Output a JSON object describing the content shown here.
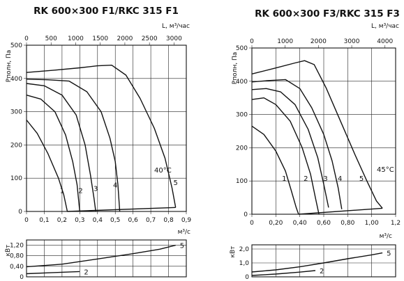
{
  "charts": [
    {
      "title": "RK 600×300 F1/RKC 315 F1",
      "type": "line",
      "top_axis": {
        "label": "L, м³/час",
        "ticks": [
          0,
          500,
          1000,
          1500,
          2000,
          2500,
          3000
        ],
        "tick_labels": [
          "0",
          "500",
          "1000",
          "1500",
          "2000",
          "2500",
          "3000"
        ],
        "range": [
          0,
          3250
        ]
      },
      "x_axis": {
        "label": "м³/с",
        "ticks": [
          0,
          0.1,
          0.2,
          0.3,
          0.4,
          0.5,
          0.6,
          0.7,
          0.8,
          0.9
        ],
        "tick_labels": [
          "0",
          "0,1",
          "0,2",
          "0,3",
          "0,4",
          "0,5",
          "0,6",
          "0,7",
          "0,8",
          "0,9"
        ],
        "range": [
          0,
          0.9
        ]
      },
      "y_axis": {
        "label": "Pполн, Па",
        "ticks": [
          0,
          100,
          200,
          300,
          400,
          500
        ],
        "tick_labels": [
          "0",
          "100",
          "200",
          "300",
          "400",
          "500"
        ],
        "range": [
          0,
          500
        ]
      },
      "temperature_label": "40°C",
      "series": [
        {
          "name": "1",
          "label_at": [
            0.2,
            55
          ],
          "points": [
            [
              0,
              275
            ],
            [
              0.06,
              235
            ],
            [
              0.12,
              175
            ],
            [
              0.18,
              100
            ],
            [
              0.21,
              50
            ],
            [
              0.23,
              0
            ]
          ]
        },
        {
          "name": "2",
          "label_at": [
            0.305,
            55
          ],
          "points": [
            [
              0,
              350
            ],
            [
              0.08,
              338
            ],
            [
              0.16,
              300
            ],
            [
              0.22,
              230
            ],
            [
              0.26,
              150
            ],
            [
              0.285,
              80
            ],
            [
              0.3,
              0
            ]
          ]
        },
        {
          "name": "3",
          "label_at": [
            0.39,
            62
          ],
          "points": [
            [
              0,
              385
            ],
            [
              0.1,
              378
            ],
            [
              0.2,
              350
            ],
            [
              0.28,
              290
            ],
            [
              0.33,
              200
            ],
            [
              0.36,
              110
            ],
            [
              0.38,
              40
            ],
            [
              0.39,
              0
            ]
          ]
        },
        {
          "name": "4",
          "label_at": [
            0.5,
            72
          ],
          "points": [
            [
              0,
              398
            ],
            [
              0.12,
              396
            ],
            [
              0.24,
              392
            ],
            [
              0.34,
              360
            ],
            [
              0.42,
              300
            ],
            [
              0.47,
              220
            ],
            [
              0.5,
              150
            ],
            [
              0.515,
              80
            ],
            [
              0.525,
              0
            ]
          ]
        },
        {
          "name": "5",
          "label_at": [
            0.84,
            80
          ],
          "points": [
            [
              0,
              418
            ],
            [
              0.16,
              425
            ],
            [
              0.3,
              432
            ],
            [
              0.4,
              438
            ],
            [
              0.48,
              440
            ],
            [
              0.56,
              410
            ],
            [
              0.64,
              340
            ],
            [
              0.72,
              250
            ],
            [
              0.78,
              160
            ],
            [
              0.82,
              70
            ],
            [
              0.84,
              12
            ]
          ]
        }
      ],
      "envelope": {
        "points": [
          [
            0.23,
            0
          ],
          [
            0.84,
            12
          ]
        ]
      },
      "power": {
        "y_label": "кВт",
        "y_ticks": [
          0,
          0.4,
          0.8,
          1.2
        ],
        "y_tick_labels": [
          "0",
          "0,40",
          "0,80",
          "1,20"
        ],
        "y_range": [
          0,
          1.4
        ],
        "series": [
          {
            "name": "5",
            "points": [
              [
                0,
                0.38
              ],
              [
                0.2,
                0.48
              ],
              [
                0.4,
                0.68
              ],
              [
                0.6,
                0.88
              ],
              [
                0.75,
                1.05
              ],
              [
                0.84,
                1.2
              ]
            ]
          },
          {
            "name": "2",
            "points": [
              [
                0,
                0.12
              ],
              [
                0.15,
                0.16
              ],
              [
                0.3,
                0.2
              ]
            ]
          }
        ]
      }
    },
    {
      "title": "RK 600×300 F3/RKC 315 F3",
      "type": "line",
      "top_axis": {
        "label": "L, м³/час",
        "ticks": [
          0,
          1000,
          2000,
          3000,
          4000
        ],
        "tick_labels": [
          "0",
          "1000",
          "2000",
          "3000",
          "4000"
        ],
        "range": [
          0,
          4320
        ]
      },
      "x_axis": {
        "label": "м³/с",
        "ticks": [
          0,
          0.2,
          0.4,
          0.6,
          0.8,
          1.0,
          1.2
        ],
        "tick_labels": [
          "0",
          "0,20",
          "0,40",
          "0,60",
          "0,80",
          "1,00",
          "1,2"
        ],
        "range": [
          0,
          1.2
        ]
      },
      "y_axis": {
        "label": "Pполн, Па",
        "ticks": [
          0,
          100,
          200,
          300,
          400,
          500
        ],
        "tick_labels": [
          "0",
          "100",
          "200",
          "300",
          "400",
          "500"
        ],
        "range": [
          0,
          500
        ]
      },
      "temperature_label": "45°C",
      "series": [
        {
          "name": "1",
          "label_at": [
            0.27,
            100
          ],
          "points": [
            [
              0,
              265
            ],
            [
              0.1,
              240
            ],
            [
              0.2,
              190
            ],
            [
              0.28,
              130
            ],
            [
              0.33,
              70
            ],
            [
              0.37,
              20
            ],
            [
              0.39,
              0
            ]
          ]
        },
        {
          "name": "2",
          "label_at": [
            0.45,
            100
          ],
          "points": [
            [
              0,
              345
            ],
            [
              0.1,
              350
            ],
            [
              0.2,
              330
            ],
            [
              0.32,
              280
            ],
            [
              0.42,
              200
            ],
            [
              0.49,
              120
            ],
            [
              0.53,
              50
            ],
            [
              0.56,
              0
            ]
          ]
        },
        {
          "name": "3",
          "label_at": [
            0.615,
            100
          ],
          "points": [
            [
              0,
              375
            ],
            [
              0.12,
              378
            ],
            [
              0.24,
              368
            ],
            [
              0.36,
              330
            ],
            [
              0.47,
              255
            ],
            [
              0.55,
              170
            ],
            [
              0.6,
              90
            ],
            [
              0.64,
              20
            ]
          ]
        },
        {
          "name": "4",
          "label_at": [
            0.735,
            100
          ],
          "points": [
            [
              0,
              398
            ],
            [
              0.14,
              402
            ],
            [
              0.28,
              405
            ],
            [
              0.4,
              378
            ],
            [
              0.5,
              320
            ],
            [
              0.6,
              240
            ],
            [
              0.67,
              160
            ],
            [
              0.72,
              80
            ],
            [
              0.75,
              15
            ]
          ]
        },
        {
          "name": "5",
          "label_at": [
            0.915,
            100
          ],
          "points": [
            [
              0,
              422
            ],
            [
              0.2,
              440
            ],
            [
              0.36,
              455
            ],
            [
              0.44,
              462
            ],
            [
              0.52,
              450
            ],
            [
              0.62,
              380
            ],
            [
              0.74,
              280
            ],
            [
              0.86,
              180
            ],
            [
              0.96,
              100
            ],
            [
              1.04,
              40
            ],
            [
              1.09,
              18
            ]
          ]
        }
      ],
      "envelope": {
        "points": [
          [
            0.39,
            0
          ],
          [
            1.09,
            18
          ]
        ]
      },
      "power": {
        "y_label": "кВт",
        "y_ticks": [
          0,
          1.0,
          2.0
        ],
        "y_tick_labels": [
          "0",
          "1,0",
          "2,0"
        ],
        "y_range": [
          0,
          2.3
        ],
        "series": [
          {
            "name": "5",
            "points": [
              [
                0,
                0.35
              ],
              [
                0.2,
                0.5
              ],
              [
                0.4,
                0.72
              ],
              [
                0.6,
                1.0
              ],
              [
                0.8,
                1.3
              ],
              [
                1.0,
                1.58
              ],
              [
                1.09,
                1.72
              ]
            ]
          },
          {
            "name": "2",
            "points": [
              [
                0,
                0.1
              ],
              [
                0.2,
                0.2
              ],
              [
                0.4,
                0.34
              ],
              [
                0.53,
                0.45
              ]
            ]
          }
        ]
      }
    }
  ]
}
